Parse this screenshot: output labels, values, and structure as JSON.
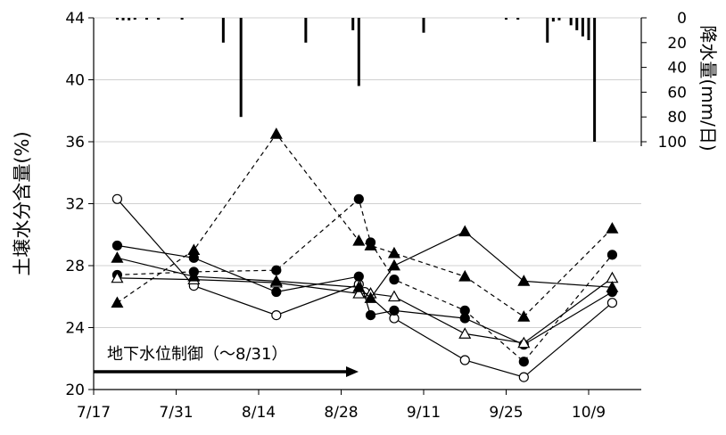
{
  "chart_data": {
    "type": "line",
    "ylabel_left": "土壌水分含量(%)",
    "ylabel_right": "降水量(mm/日)",
    "annotation": "地下水位制御（〜8/31）",
    "x_ticks": [
      "7/17",
      "7/31",
      "8/14",
      "8/28",
      "9/11",
      "9/25",
      "10/9"
    ],
    "y_ticks_left": [
      "20",
      "24",
      "28",
      "32",
      "36",
      "40",
      "44"
    ],
    "y_ticks_right": [
      "0",
      "20",
      "40",
      "60",
      "80",
      "100"
    ],
    "ylim_left": [
      20,
      44
    ],
    "ylim_right": [
      0,
      100
    ],
    "grid": true,
    "series": [
      {
        "marker": "open-circle",
        "line": "solid",
        "points": [
          [
            "7/21",
            32.3
          ],
          [
            "8/3",
            26.7
          ],
          [
            "8/17",
            24.8
          ],
          [
            "8/31",
            26.8
          ],
          [
            "9/1",
            26.3
          ],
          [
            "9/6",
            24.6
          ],
          [
            "9/18",
            21.9
          ],
          [
            "9/28",
            20.8
          ],
          [
            "10/13",
            25.6
          ]
        ]
      },
      {
        "marker": "filled-circle",
        "line": "solid",
        "points": [
          [
            "7/21",
            29.3
          ],
          [
            "8/3",
            28.5
          ],
          [
            "8/17",
            26.3
          ],
          [
            "8/31",
            27.3
          ],
          [
            "9/2",
            24.8
          ],
          [
            "9/6",
            25.1
          ],
          [
            "9/18",
            24.6
          ],
          [
            "9/28",
            22.9
          ],
          [
            "10/13",
            26.3
          ]
        ]
      },
      {
        "marker": "filled-circle",
        "line": "dashed",
        "points": [
          [
            "7/21",
            27.4
          ],
          [
            "8/3",
            27.6
          ],
          [
            "8/17",
            27.7
          ],
          [
            "8/31",
            32.3
          ],
          [
            "9/2",
            29.5
          ],
          [
            "9/6",
            27.1
          ],
          [
            "9/18",
            25.1
          ],
          [
            "9/28",
            21.8
          ],
          [
            "10/13",
            28.7
          ]
        ]
      },
      {
        "marker": "open-triangle",
        "line": "solid",
        "points": [
          [
            "7/21",
            27.2
          ],
          [
            "8/3",
            27.1
          ],
          [
            "8/17",
            26.9
          ],
          [
            "8/31",
            26.2
          ],
          [
            "9/2",
            26.2
          ],
          [
            "9/6",
            26.0
          ],
          [
            "9/18",
            23.6
          ],
          [
            "9/28",
            23.0
          ],
          [
            "10/13",
            27.2
          ]
        ]
      },
      {
        "marker": "filled-triangle",
        "line": "solid",
        "points": [
          [
            "7/21",
            28.5
          ],
          [
            "8/3",
            27.3
          ],
          [
            "8/17",
            27.0
          ],
          [
            "8/31",
            26.6
          ],
          [
            "9/2",
            25.9
          ],
          [
            "9/6",
            28.0
          ],
          [
            "9/18",
            30.2
          ],
          [
            "9/28",
            27.0
          ],
          [
            "10/13",
            26.6
          ]
        ]
      },
      {
        "marker": "filled-triangle",
        "line": "dashed",
        "points": [
          [
            "7/21",
            25.6
          ],
          [
            "8/3",
            29.0
          ],
          [
            "8/17",
            36.5
          ],
          [
            "8/31",
            29.6
          ],
          [
            "9/2",
            29.3
          ],
          [
            "9/6",
            28.8
          ],
          [
            "9/18",
            27.3
          ],
          [
            "9/28",
            24.7
          ],
          [
            "10/13",
            30.4
          ]
        ]
      }
    ],
    "precipitation": [
      [
        "7/21",
        1
      ],
      [
        "7/22",
        2
      ],
      [
        "7/23",
        2
      ],
      [
        "7/24",
        1
      ],
      [
        "7/26",
        1
      ],
      [
        "7/28",
        1
      ],
      [
        "8/1",
        1
      ],
      [
        "8/8",
        20
      ],
      [
        "8/11",
        80
      ],
      [
        "8/22",
        20
      ],
      [
        "8/30",
        10
      ],
      [
        "8/31",
        55
      ],
      [
        "9/11",
        12
      ],
      [
        "9/25",
        1
      ],
      [
        "9/27",
        1
      ],
      [
        "10/2",
        20
      ],
      [
        "10/3",
        3
      ],
      [
        "10/4",
        2
      ],
      [
        "10/6",
        6
      ],
      [
        "10/7",
        10
      ],
      [
        "10/8",
        15
      ],
      [
        "10/9",
        18
      ],
      [
        "10/10",
        100
      ]
    ]
  }
}
